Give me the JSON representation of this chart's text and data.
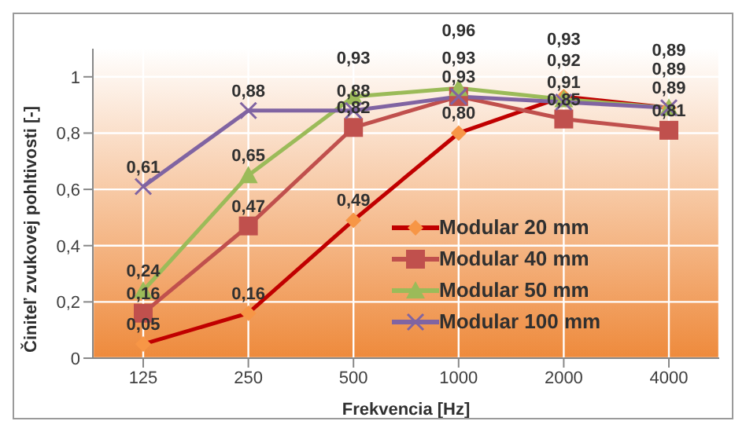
{
  "chart_data": {
    "type": "line",
    "xlabel": "Frekvencia [Hz]",
    "ylabel": "Činiteľ zvukovej pohltivosti [-]",
    "categories": [
      "125",
      "250",
      "500",
      "1000",
      "2000",
      "4000"
    ],
    "series": [
      {
        "name": "Modular 20 mm",
        "color": "#c00000",
        "marker": "diamond",
        "values": [
          0.05,
          0.16,
          0.49,
          0.8,
          0.93,
          0.89
        ],
        "value_labels": [
          "0,05",
          "0,16",
          "0,49",
          "0,80",
          "0,93",
          "0,89"
        ]
      },
      {
        "name": "Modular 40 mm",
        "color": "#c0504d",
        "marker": "square",
        "values": [
          0.16,
          0.47,
          0.82,
          0.93,
          0.85,
          0.81
        ],
        "value_labels": [
          "0,16",
          "0,47",
          "0,82",
          "0,93",
          "0,85",
          "0,81"
        ]
      },
      {
        "name": "Modular 50 mm",
        "color": "#9bbb59",
        "marker": "triangle",
        "values": [
          0.24,
          0.65,
          0.93,
          0.96,
          0.92,
          0.89
        ],
        "value_labels": [
          "0,24",
          "0,65",
          "0,93",
          "0,96",
          "0,92",
          "0,89"
        ]
      },
      {
        "name": "Modular 100 mm",
        "color": "#8064a2",
        "marker": "cross",
        "values": [
          0.61,
          0.88,
          0.88,
          0.93,
          0.91,
          0.89
        ],
        "value_labels": [
          "0,61",
          "0,88",
          "0,88",
          "0,93",
          "0,91",
          "0,89"
        ]
      }
    ],
    "ylim": [
      0,
      1.1
    ],
    "yticks": [
      {
        "value": 0,
        "label": "0"
      },
      {
        "value": 0.2,
        "label": "0,2"
      },
      {
        "value": 0.4,
        "label": "0,4"
      },
      {
        "value": 0.6,
        "label": "0,6"
      },
      {
        "value": 0.8,
        "label": "0,8"
      },
      {
        "value": 1,
        "label": "1"
      }
    ],
    "grid": true,
    "legend": "bottom right"
  }
}
